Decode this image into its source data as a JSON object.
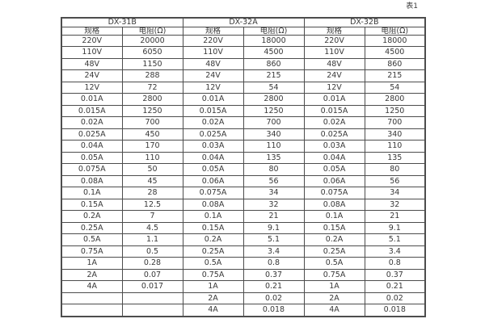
{
  "page": {
    "caption": "表1",
    "background": "#ffffff",
    "border_color": "#4d4d4d",
    "text_color": "#383838"
  },
  "table": {
    "sections": [
      {
        "title": "DX-31B",
        "columns": [
          "规格",
          "电阻(Ω)"
        ],
        "rows": [
          [
            "220V",
            "20000"
          ],
          [
            "110V",
            "6050"
          ],
          [
            "48V",
            "1150"
          ],
          [
            "24V",
            "288"
          ],
          [
            "12V",
            "72"
          ],
          [
            "0.01A",
            "2800"
          ],
          [
            "0.015A",
            "1250"
          ],
          [
            "0.02A",
            "700"
          ],
          [
            "0.025A",
            "450"
          ],
          [
            "0.04A",
            "170"
          ],
          [
            "0.05A",
            "110"
          ],
          [
            "0.075A",
            "50"
          ],
          [
            "0.08A",
            "45"
          ],
          [
            "0.1A",
            "28"
          ],
          [
            "0.15A",
            "12.5"
          ],
          [
            "0.2A",
            "7"
          ],
          [
            "0.25A",
            "4.5"
          ],
          [
            "0.5A",
            "1.1"
          ],
          [
            "0.75A",
            "0.5"
          ],
          [
            "1A",
            "0.28"
          ],
          [
            "2A",
            "0.07"
          ],
          [
            "4A",
            "0.017"
          ],
          [
            "",
            ""
          ],
          [
            "",
            ""
          ]
        ]
      },
      {
        "title": "DX-32A",
        "columns": [
          "规格",
          "电阻(Ω)"
        ],
        "rows": [
          [
            "220V",
            "18000"
          ],
          [
            "110V",
            "4500"
          ],
          [
            "48V",
            "860"
          ],
          [
            "24V",
            "215"
          ],
          [
            "12V",
            "54"
          ],
          [
            "0.01A",
            "2800"
          ],
          [
            "0.015A",
            "1250"
          ],
          [
            "0.02A",
            "700"
          ],
          [
            "0.025A",
            "340"
          ],
          [
            "0.03A",
            "110"
          ],
          [
            "0.04A",
            "135"
          ],
          [
            "0.05A",
            "80"
          ],
          [
            "0.06A",
            "56"
          ],
          [
            "0.075A",
            "34"
          ],
          [
            "0.08A",
            "32"
          ],
          [
            "0.1A",
            "21"
          ],
          [
            "0.15A",
            "9.1"
          ],
          [
            "0.2A",
            "5.1"
          ],
          [
            "0.25A",
            "3.4"
          ],
          [
            "0.5A",
            "0.8"
          ],
          [
            "0.75A",
            "0.37"
          ],
          [
            "1A",
            "0.21"
          ],
          [
            "2A",
            "0.02"
          ],
          [
            "4A",
            "0.018"
          ]
        ]
      },
      {
        "title": "DX-32B",
        "columns": [
          "规格",
          "电阻(Ω)"
        ],
        "rows": [
          [
            "220V",
            "18000"
          ],
          [
            "110V",
            "4500"
          ],
          [
            "48V",
            "860"
          ],
          [
            "24V",
            "215"
          ],
          [
            "12V",
            "54"
          ],
          [
            "0.01A",
            "2800"
          ],
          [
            "0.015A",
            "1250"
          ],
          [
            "0.02A",
            "700"
          ],
          [
            "0.025A",
            "340"
          ],
          [
            "0.03A",
            "110"
          ],
          [
            "0.04A",
            "135"
          ],
          [
            "0.05A",
            "80"
          ],
          [
            "0.06A",
            "56"
          ],
          [
            "0.075A",
            "34"
          ],
          [
            "0.08A",
            "32"
          ],
          [
            "0.1A",
            "21"
          ],
          [
            "0.15A",
            "9.1"
          ],
          [
            "0.2A",
            "5.1"
          ],
          [
            "0.25A",
            "3.4"
          ],
          [
            "0.5A",
            "0.8"
          ],
          [
            "0.75A",
            "0.37"
          ],
          [
            "1A",
            "0.21"
          ],
          [
            "2A",
            "0.02"
          ],
          [
            "4A",
            "0.018"
          ]
        ]
      }
    ]
  }
}
